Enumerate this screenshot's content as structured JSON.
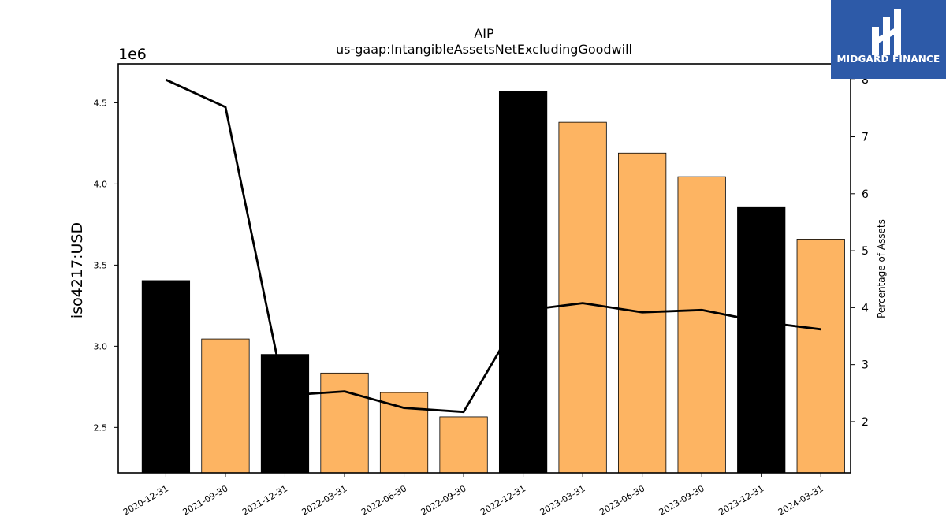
{
  "chart_data": {
    "type": "bar",
    "title": "AIP",
    "subtitle": "us-gaap:IntangibleAssetsNetExcludingGoodwill",
    "ylabel": "iso4217:USD",
    "ylabel_right": "Percentage of Assets",
    "y_offset_label": "1e6",
    "categories": [
      "2020-12-31",
      "2021-09-30",
      "2021-12-31",
      "2022-03-31",
      "2022-06-30",
      "2022-09-30",
      "2022-12-31",
      "2023-03-31",
      "2023-06-30",
      "2023-09-30",
      "2023-12-31",
      "2024-03-31"
    ],
    "values": [
      3405000,
      3045000,
      2950000,
      2835000,
      2715000,
      2565000,
      4570000,
      4380000,
      4190000,
      4045000,
      3855000,
      3660000
    ],
    "bar_colors": [
      "#000000",
      "#fdb462",
      "#000000",
      "#fdb462",
      "#fdb462",
      "#fdb462",
      "#000000",
      "#fdb462",
      "#fdb462",
      "#fdb462",
      "#000000",
      "#fdb462"
    ],
    "line": {
      "name": "Percentage of Assets",
      "values": [
        8.0,
        7.52,
        2.46,
        2.53,
        2.24,
        2.17,
        3.95,
        4.08,
        3.92,
        3.96,
        3.75,
        3.62
      ]
    },
    "ylim": [
      2220000,
      4740000
    ],
    "ylim_right": [
      1.1,
      8.28
    ],
    "yticks": [
      2.5,
      3.0,
      3.5,
      4.0,
      4.5
    ],
    "yticks_right": [
      2,
      3,
      4,
      5,
      6,
      7,
      8
    ],
    "grid": false
  },
  "logo": {
    "name": "MIDGARD FINANCE"
  }
}
